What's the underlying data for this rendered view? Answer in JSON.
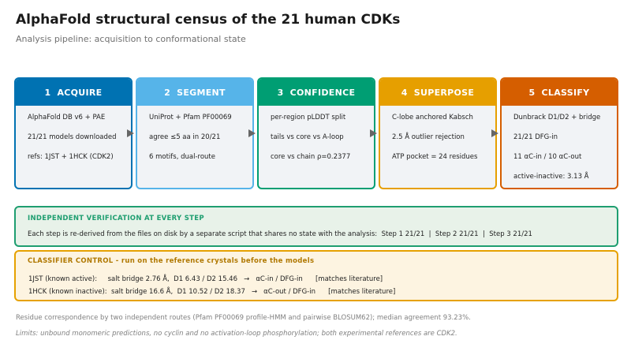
{
  "header": {
    "title": "AlphaFold structural census of the 21 human CDKs",
    "subtitle": "Analysis pipeline: acquisition to conformational state"
  },
  "steps": [
    {
      "number": "1",
      "label": "ACQUIRE",
      "lines": [
        "AlphaFold DB v6 + PAE",
        "21/21 models downloaded",
        "refs: 1JST + 1HCK (CDK2)"
      ]
    },
    {
      "number": "2",
      "label": "SEGMENT",
      "lines": [
        "UniProt + Pfam PF00069",
        "agree ≤5 aa in 20/21",
        "6 motifs, dual-route"
      ]
    },
    {
      "number": "3",
      "label": "CONFIDENCE",
      "lines": [
        "per-region pLDDT split",
        "tails vs core vs A-loop",
        "core vs chain ρ=0.2377"
      ]
    },
    {
      "number": "4",
      "label": "SUPERPOSE",
      "lines": [
        "C-lobe anchored Kabsch",
        "2.5 Å outlier rejection",
        "ATP pocket = 24 residues"
      ]
    },
    {
      "number": "5",
      "label": "CLASSIFY",
      "lines": [
        "Dunbrack D1/D2 + bridge",
        "21/21 DFG-in",
        "11 αC-in / 10 αC-out",
        "active-inactive: 3.13 Å"
      ]
    }
  ],
  "verification": {
    "title": "INDEPENDENT VERIFICATION AT EVERY STEP",
    "text": "Each step is re-derived from the files on disk by a separate script that shares no state with the analysis:  Step 1 21/21  |  Step 2 21/21  |  Step 3 21/21"
  },
  "control": {
    "title": "CLASSIFIER CONTROL - run on the reference crystals before the models",
    "rows": [
      "1JST (known active):     salt bridge 2.76 Å,  D1 6.43 / D2 15.46   →   αC-in / DFG-in      [matches literature]",
      "1HCK (known inactive):  salt bridge 16.6 Å,  D1 10.52 / D2 18.37   →   αC-out / DFG-in      [matches literature]"
    ]
  },
  "footnotes": [
    "Residue correspondence by two independent routes (Pfam PF00069 profile-HMM and pairwise BLOSUM62); median agreement 93.23%.",
    "Limits: unbound monomeric predictions, no cyclin and no activation-loop phosphorylation; both experimental references are CDK2."
  ]
}
